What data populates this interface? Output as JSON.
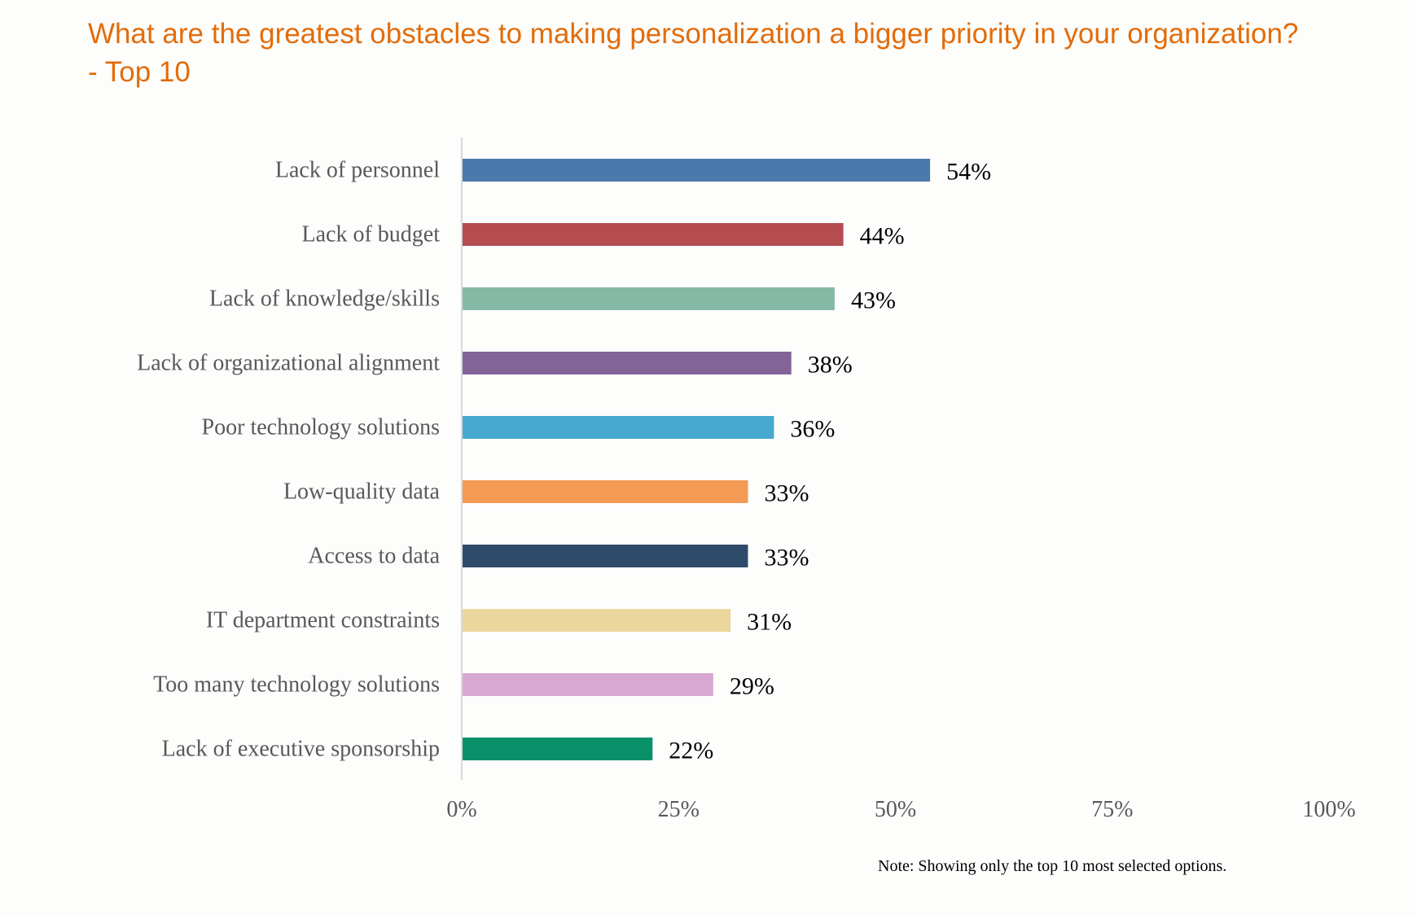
{
  "chart_data": {
    "type": "bar",
    "orientation": "horizontal",
    "title": "What are the greatest obstacles to making personalization a bigger priority in your organization? - Top 10",
    "categories": [
      "Lack of personnel",
      "Lack of budget",
      "Lack of knowledge/skills",
      "Lack of organizational alignment",
      "Poor technology solutions",
      "Low-quality data",
      "Access to data",
      "IT department constraints",
      "Too many technology solutions",
      "Lack of executive sponsorship"
    ],
    "values": [
      54,
      44,
      43,
      38,
      36,
      33,
      33,
      31,
      29,
      22
    ],
    "value_labels": [
      "54%",
      "44%",
      "43%",
      "38%",
      "36%",
      "33%",
      "33%",
      "31%",
      "29%",
      "22%"
    ],
    "bar_colors": [
      "#4a7aab",
      "#b54c50",
      "#85b9a6",
      "#846396",
      "#47a9d0",
      "#f39a55",
      "#2e4b6a",
      "#ebd79d",
      "#d7a8d2",
      "#0a9169"
    ],
    "x_ticks": [
      0,
      25,
      50,
      75,
      100
    ],
    "x_tick_labels": [
      "0%",
      "25%",
      "50%",
      "75%",
      "100%"
    ],
    "xlim": [
      0,
      100
    ],
    "xlabel": "",
    "ylabel": "",
    "grid": false,
    "legend": "none",
    "note": "Note: Showing only the top 10 most selected options."
  }
}
